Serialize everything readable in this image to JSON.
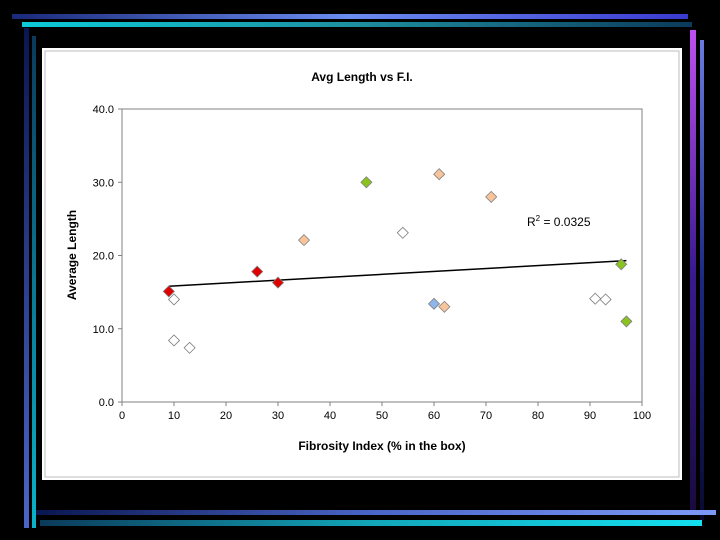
{
  "chart_data": {
    "type": "scatter",
    "title": "Avg Length vs F.I.",
    "xlabel": "Fibrosity Index (% in the box)",
    "ylabel": "Average Length",
    "xlim": [
      0,
      100
    ],
    "ylim": [
      0,
      40
    ],
    "x_ticks": [
      "0",
      "10",
      "20",
      "30",
      "40",
      "50",
      "60",
      "70",
      "80",
      "90",
      "100"
    ],
    "y_ticks": [
      "0.0",
      "10.0",
      "20.0",
      "30.0",
      "40.0"
    ],
    "grid": false,
    "legend": "none",
    "annotation": {
      "r_symbol": "R",
      "r_superscript": "2",
      "text": " = 0.0325"
    },
    "trendline": {
      "x": [
        9,
        97
      ],
      "y": [
        15.8,
        19.3
      ]
    },
    "series": [
      {
        "color": "#e00000",
        "points": [
          {
            "x": 9,
            "y": 15.1
          },
          {
            "x": 26,
            "y": 17.8
          },
          {
            "x": 30,
            "y": 16.3
          }
        ]
      },
      {
        "color": "#ffffff",
        "points": [
          {
            "x": 10,
            "y": 14.0
          },
          {
            "x": 10,
            "y": 8.4
          },
          {
            "x": 13,
            "y": 7.4
          },
          {
            "x": 54,
            "y": 23.1
          },
          {
            "x": 91,
            "y": 14.1
          },
          {
            "x": 93,
            "y": 14.0
          }
        ]
      },
      {
        "color": "#f9c49a",
        "points": [
          {
            "x": 35,
            "y": 22.1
          },
          {
            "x": 61,
            "y": 31.1
          },
          {
            "x": 62,
            "y": 13.0
          },
          {
            "x": 71,
            "y": 28.0
          }
        ]
      },
      {
        "color": "#8ac21f",
        "points": [
          {
            "x": 47,
            "y": 30.0
          },
          {
            "x": 96,
            "y": 18.8
          },
          {
            "x": 97,
            "y": 11.0
          }
        ]
      },
      {
        "color": "#8fb6ea",
        "points": [
          {
            "x": 60,
            "y": 13.4
          }
        ]
      }
    ]
  }
}
